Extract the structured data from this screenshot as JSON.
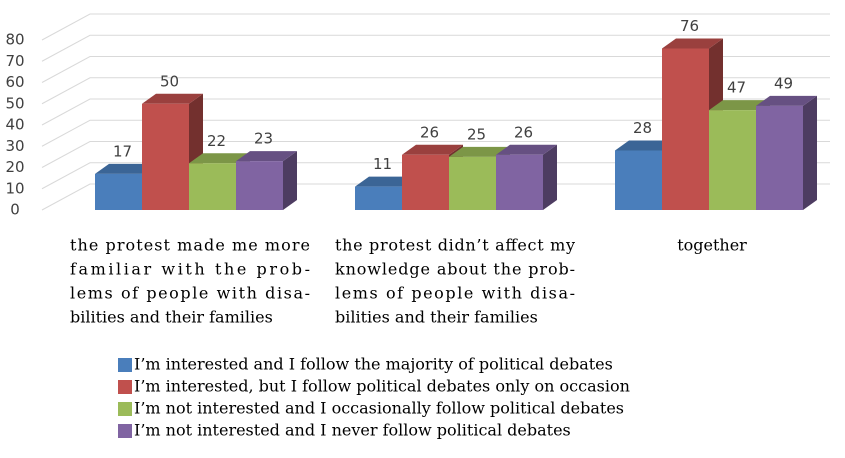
{
  "chart_data": {
    "type": "bar3d",
    "categories": [
      [
        "the protest made me more",
        "familiar with the prob-",
        "lems of people with disa-",
        "bilities and their families"
      ],
      [
        "the protest didn’t affect my",
        "knowledge about the prob-",
        "lems of people with disa-",
        "bilities and their families"
      ],
      [
        "together"
      ]
    ],
    "series": [
      {
        "name": "I’m interested and I follow the majority of political debates",
        "color": "#4a7ebb",
        "values": [
          17,
          11,
          28
        ]
      },
      {
        "name": "I’m interested, but I follow political debates only on occasion",
        "color": "#c0504d",
        "values": [
          50,
          26,
          76
        ]
      },
      {
        "name": "I’m not interested and I occasionally follow political debates",
        "color": "#9bbb59",
        "values": [
          22,
          25,
          47
        ]
      },
      {
        "name": "I’m not interested and I never follow political debates",
        "color": "#8064a2",
        "values": [
          23,
          26,
          49
        ]
      }
    ],
    "ylim": [
      0,
      80
    ],
    "yticks": [
      0,
      10,
      20,
      30,
      40,
      50,
      60,
      70,
      80
    ],
    "grid": true,
    "legend": "bottom"
  }
}
